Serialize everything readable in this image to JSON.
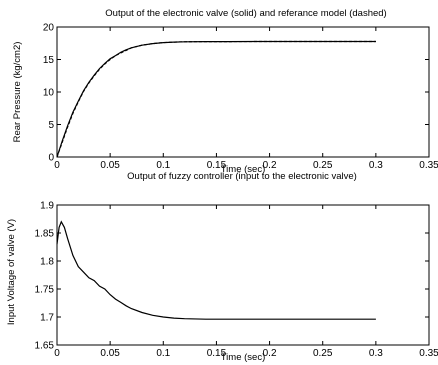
{
  "chart_data": [
    {
      "type": "line",
      "title": "Output of the electronic valve (solid) and referance model (dashed)",
      "xlabel": "Time (sec)",
      "ylabel": "Rear Pressure (kg/cm2)",
      "xlim": [
        0,
        0.35
      ],
      "ylim": [
        0,
        20
      ],
      "xticks": [
        "0",
        "0.05",
        "0.1",
        "0.15",
        "0.2",
        "0.25",
        "0.3",
        "0.35"
      ],
      "yticks": [
        "0",
        "5",
        "10",
        "15",
        "20"
      ],
      "grid": false,
      "series": [
        {
          "style": "solid",
          "x": [
            0,
            0.005,
            0.01,
            0.015,
            0.02,
            0.025,
            0.03,
            0.035,
            0.04,
            0.045,
            0.05,
            0.055,
            0.06,
            0.065,
            0.07,
            0.08,
            0.09,
            0.1,
            0.11,
            0.12,
            0.14,
            0.16,
            0.2,
            0.25,
            0.3
          ],
          "values": [
            0,
            2.5,
            4.8,
            6.9,
            8.6,
            10.2,
            11.5,
            12.6,
            13.6,
            14.4,
            15.1,
            15.6,
            16.1,
            16.5,
            16.8,
            17.2,
            17.45,
            17.6,
            17.68,
            17.72,
            17.75,
            17.76,
            17.77,
            17.77,
            17.77
          ]
        },
        {
          "style": "dashed",
          "x": [
            0,
            0.005,
            0.01,
            0.015,
            0.02,
            0.025,
            0.03,
            0.035,
            0.04,
            0.045,
            0.05,
            0.055,
            0.06,
            0.065,
            0.07,
            0.08,
            0.09,
            0.1,
            0.11,
            0.12,
            0.14,
            0.16,
            0.2,
            0.25,
            0.3
          ],
          "values": [
            0,
            2.3,
            4.6,
            6.7,
            8.5,
            10.1,
            11.4,
            12.5,
            13.5,
            14.3,
            15.0,
            15.6,
            16.0,
            16.4,
            16.8,
            17.2,
            17.45,
            17.6,
            17.68,
            17.72,
            17.75,
            17.76,
            17.77,
            17.77,
            17.77
          ]
        }
      ]
    },
    {
      "type": "line",
      "title": "Output of fuzzy controller (input to the electronic valve)",
      "xlabel": "Time (sec)",
      "ylabel": "Input Voltage of valve (V)",
      "xlim": [
        0,
        0.35
      ],
      "ylim": [
        1.65,
        1.9
      ],
      "xticks": [
        "0",
        "0.05",
        "0.1",
        "0.15",
        "0.2",
        "0.25",
        "0.3",
        "0.35"
      ],
      "yticks": [
        "1.65",
        "1.7",
        "1.75",
        "1.8",
        "1.85",
        "1.9"
      ],
      "grid": false,
      "series": [
        {
          "style": "solid",
          "x": [
            0,
            0.002,
            0.004,
            0.007,
            0.01,
            0.015,
            0.02,
            0.025,
            0.03,
            0.035,
            0.04,
            0.045,
            0.05,
            0.055,
            0.06,
            0.065,
            0.07,
            0.08,
            0.09,
            0.1,
            0.11,
            0.12,
            0.14,
            0.16,
            0.2,
            0.25,
            0.3
          ],
          "values": [
            1.83,
            1.86,
            1.87,
            1.86,
            1.84,
            1.81,
            1.79,
            1.78,
            1.77,
            1.765,
            1.755,
            1.75,
            1.74,
            1.732,
            1.726,
            1.72,
            1.715,
            1.708,
            1.703,
            1.7,
            1.698,
            1.697,
            1.696,
            1.696,
            1.696,
            1.696,
            1.696
          ]
        }
      ]
    }
  ]
}
